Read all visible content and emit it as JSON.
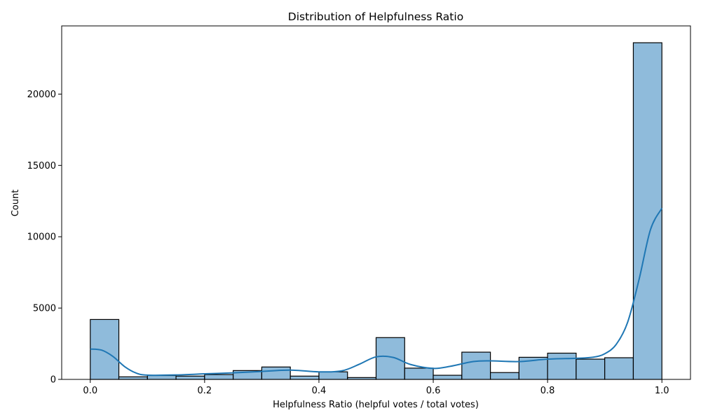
{
  "chart_data": {
    "type": "bar",
    "title": "Distribution of Helpfulness Ratio",
    "xlabel": "Helpfulness Ratio (helpful votes / total votes)",
    "ylabel": "Count",
    "bin_edges": [
      0.0,
      0.05,
      0.1,
      0.15,
      0.2,
      0.25,
      0.3,
      0.35,
      0.4,
      0.45,
      0.5,
      0.55,
      0.6,
      0.65,
      0.7,
      0.75,
      0.8,
      0.85,
      0.9,
      0.95,
      1.0
    ],
    "values": [
      4200,
      180,
      270,
      230,
      340,
      620,
      870,
      230,
      530,
      130,
      2930,
      790,
      290,
      1910,
      480,
      1550,
      1840,
      1420,
      1520,
      23600
    ],
    "kde": {
      "x": [
        0.0,
        0.02,
        0.04,
        0.06,
        0.08,
        0.1,
        0.15,
        0.2,
        0.25,
        0.3,
        0.35,
        0.4,
        0.44,
        0.47,
        0.5,
        0.53,
        0.56,
        0.6,
        0.63,
        0.67,
        0.7,
        0.75,
        0.8,
        0.85,
        0.88,
        0.9,
        0.92,
        0.94,
        0.96,
        0.98,
        1.0
      ],
      "y": [
        2130,
        2050,
        1600,
        900,
        450,
        300,
        310,
        390,
        460,
        560,
        650,
        530,
        600,
        1050,
        1580,
        1540,
        1050,
        770,
        920,
        1250,
        1300,
        1250,
        1420,
        1480,
        1560,
        1800,
        2450,
        4000,
        7000,
        10500,
        12000
      ]
    },
    "xlim": [
      -0.05,
      1.05
    ],
    "ylim": [
      0,
      24780
    ],
    "xticks": [
      0.0,
      0.2,
      0.4,
      0.6,
      0.8,
      1.0
    ],
    "xtick_labels": [
      "0.0",
      "0.2",
      "0.4",
      "0.6",
      "0.8",
      "1.0"
    ],
    "yticks": [
      0,
      5000,
      10000,
      15000,
      20000
    ],
    "ytick_labels": [
      "0",
      "5000",
      "10000",
      "15000",
      "20000"
    ],
    "bar_color": "#8fbbdb",
    "bar_edge_color": "#000000",
    "line_color": "#1f77b4",
    "grid": false
  }
}
